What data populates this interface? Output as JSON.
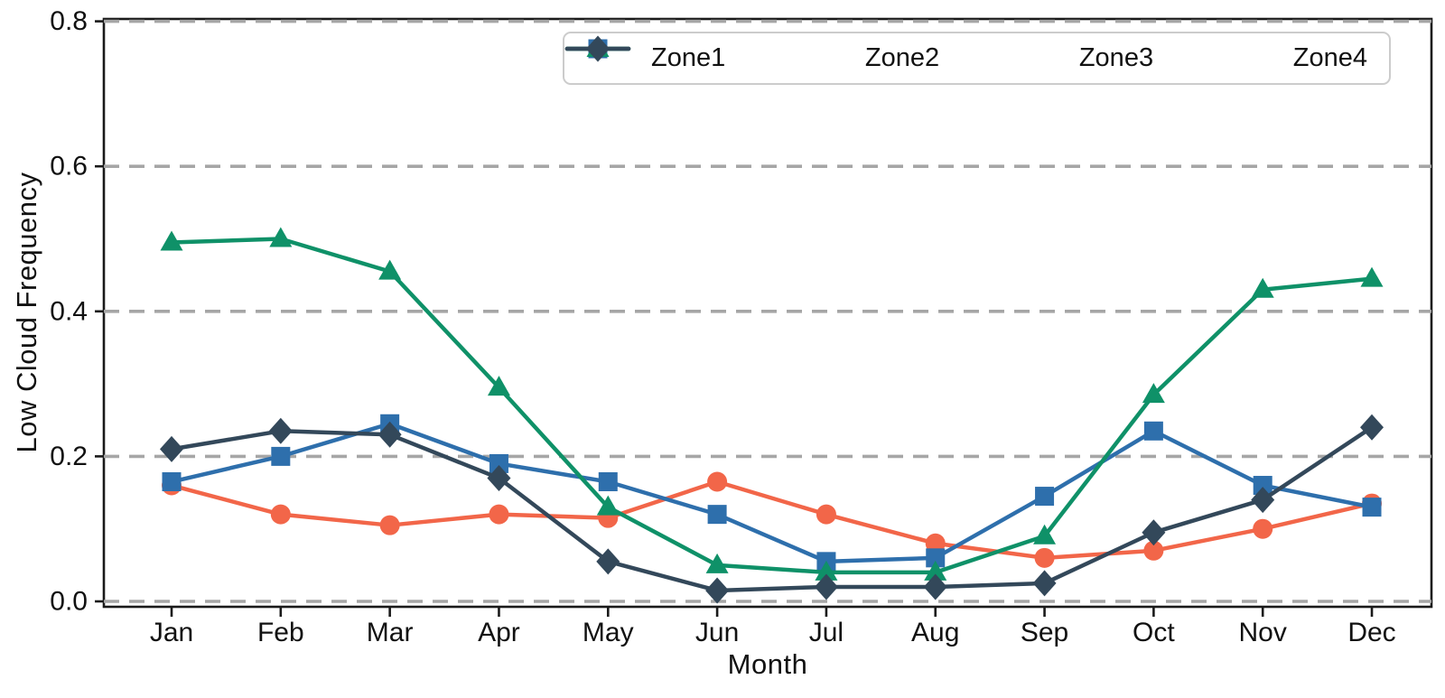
{
  "figure": {
    "background": "#ffffff",
    "axis_color": "#1a1a1a",
    "text_color": "#111111"
  },
  "chart_data": {
    "type": "line",
    "title": "",
    "xlabel": "Month",
    "ylabel": "Low Cloud Frequency",
    "categories": [
      "Jan",
      "Feb",
      "Mar",
      "Apr",
      "May",
      "Jun",
      "Jul",
      "Aug",
      "Sep",
      "Oct",
      "Nov",
      "Dec"
    ],
    "ylim": [
      0.0,
      0.8
    ],
    "yticks": [
      0.0,
      0.2,
      0.4,
      0.6,
      0.8
    ],
    "ytick_labels": [
      "0.0",
      "0.2",
      "0.4",
      "0.6",
      "0.8"
    ],
    "grid": {
      "horizontal": true,
      "vertical": false,
      "style": "dashed",
      "color": "#a6a6a6"
    },
    "legend": {
      "position": "top",
      "border_color": "#cccccc",
      "entries": [
        "Zone1",
        "Zone2",
        "Zone3",
        "Zone4"
      ]
    },
    "series": [
      {
        "name": "Zone1",
        "marker": "circle",
        "color": "#F26649",
        "values": [
          0.16,
          0.12,
          0.105,
          0.12,
          0.115,
          0.165,
          0.12,
          0.08,
          0.06,
          0.07,
          0.1,
          0.135
        ]
      },
      {
        "name": "Zone2",
        "marker": "square",
        "color": "#2E6FAC",
        "values": [
          0.165,
          0.2,
          0.245,
          0.19,
          0.165,
          0.12,
          0.055,
          0.06,
          0.145,
          0.235,
          0.16,
          0.13
        ]
      },
      {
        "name": "Zone3",
        "marker": "triangle",
        "color": "#0F9168",
        "values": [
          0.495,
          0.5,
          0.455,
          0.295,
          0.13,
          0.05,
          0.04,
          0.04,
          0.09,
          0.285,
          0.43,
          0.445
        ]
      },
      {
        "name": "Zone4",
        "marker": "diamond",
        "color": "#33485A",
        "values": [
          0.21,
          0.235,
          0.23,
          0.17,
          0.055,
          0.015,
          0.02,
          0.02,
          0.025,
          0.095,
          0.14,
          0.24
        ]
      }
    ]
  }
}
